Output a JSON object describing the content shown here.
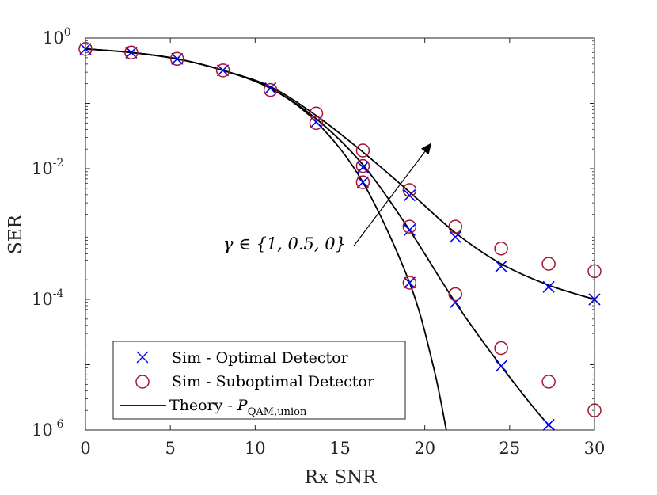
{
  "chart_data": {
    "type": "line",
    "xlabel": "Rx SNR",
    "ylabel": "SER",
    "xlim": [
      0,
      30
    ],
    "ylim": [
      1e-06,
      1
    ],
    "yscale": "log",
    "grid": false,
    "legend_position": "bottom-left",
    "x_ticks": [
      "0",
      "5",
      "10",
      "15",
      "20",
      "25",
      "30"
    ],
    "y_ticks": [
      {
        "base": "10",
        "exp": "0",
        "value": 1
      },
      {
        "base": "10",
        "exp": "-2",
        "value": 0.01
      },
      {
        "base": "10",
        "exp": "-4",
        "value": 0.0001
      },
      {
        "base": "10",
        "exp": "-6",
        "value": 1e-06
      }
    ],
    "annotation": {
      "text_prefix": "γ ∈ {1, 0.5, 0}",
      "arrow_from": {
        "x": 15.8,
        "y": 0.00065
      },
      "arrow_to": {
        "x": 20.4,
        "y": 0.025
      }
    },
    "legend": [
      {
        "key": "optimal",
        "label": "Sim - Optimal Detector",
        "marker": "x",
        "color": "#0000ff"
      },
      {
        "key": "suboptimal",
        "label": "Sim - Suboptimal Detector",
        "marker": "o",
        "color": "#a2142f"
      },
      {
        "key": "theory",
        "label_main": "Theory - ",
        "label_sym": "P",
        "label_sub": "QAM,union",
        "marker": "line",
        "color": "#000000"
      }
    ],
    "theory_curves": [
      {
        "name": "γ = 0",
        "x": [
          0,
          2.7,
          5.4,
          8.1,
          10.9,
          13.6,
          16.35,
          19.1,
          20.5,
          21.3
        ],
        "y": [
          0.68,
          0.6,
          0.48,
          0.32,
          0.17,
          0.052,
          0.0062,
          0.00018,
          9.5e-06,
          9e-07
        ]
      },
      {
        "name": "γ = 0.5",
        "x": [
          0,
          2.7,
          5.4,
          8.1,
          10.9,
          13.6,
          16.35,
          19.1,
          21.8,
          24.5,
          27.3,
          28.5
        ],
        "y": [
          0.68,
          0.6,
          0.48,
          0.32,
          0.17,
          0.058,
          0.0115,
          0.00115,
          9e-05,
          9.5e-06,
          1.2e-06,
          8e-07
        ]
      },
      {
        "name": "γ = 1",
        "x": [
          0,
          2.7,
          5.4,
          8.1,
          10.9,
          13.6,
          16.35,
          19.1,
          21.8,
          24.5,
          27.3,
          30
        ],
        "y": [
          0.68,
          0.6,
          0.48,
          0.32,
          0.18,
          0.065,
          0.018,
          0.0044,
          0.00105,
          0.00035,
          0.000165,
          0.0001
        ]
      }
    ],
    "series": [
      {
        "name": "Sim - Optimal Detector",
        "marker": "x",
        "color": "#0000ff",
        "x": [
          0,
          2.7,
          5.4,
          8.1,
          10.9,
          13.6,
          16.35,
          16.35,
          19.1,
          19.1,
          19.1,
          21.8,
          21.8,
          24.5,
          24.5,
          27.3,
          27.3,
          30
        ],
        "y": [
          0.68,
          0.6,
          0.48,
          0.32,
          0.17,
          0.052,
          0.0062,
          0.0105,
          0.00018,
          0.00115,
          0.0039,
          9e-05,
          0.0009,
          9.5e-06,
          0.00032,
          1.2e-06,
          0.000155,
          0.0001
        ]
      },
      {
        "name": "Sim - Suboptimal Detector",
        "marker": "o",
        "color": "#a2142f",
        "x": [
          0,
          2.7,
          5.4,
          8.1,
          10.9,
          13.6,
          13.6,
          16.35,
          16.35,
          16.35,
          19.1,
          19.1,
          19.1,
          21.8,
          21.8,
          24.5,
          24.5,
          27.3,
          27.3,
          30,
          30
        ],
        "y": [
          0.68,
          0.6,
          0.48,
          0.32,
          0.16,
          0.05,
          0.07,
          0.0062,
          0.011,
          0.019,
          0.00018,
          0.0013,
          0.0047,
          0.00012,
          0.0013,
          1.8e-05,
          0.0006,
          5.5e-06,
          0.00035,
          2e-06,
          0.00027
        ]
      }
    ]
  }
}
